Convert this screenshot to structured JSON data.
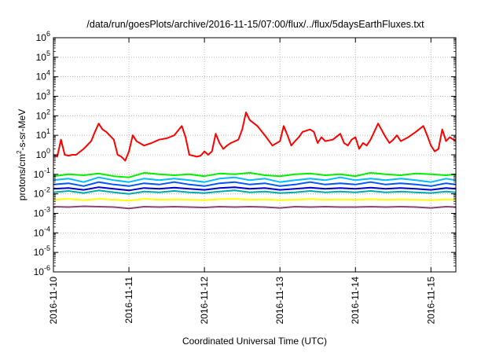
{
  "chart_data": {
    "type": "line",
    "title": "/data/run/goesPlots/archive/2016-11-15/07:00/flux/../flux/5daysEarthFluxes.txt",
    "xlabel": "Coordinated Universal Time (UTC)",
    "ylabel": {
      "base": "protons/cm",
      "sup": "2",
      "rest": "-s-sr-MeV"
    },
    "y_scale": "log",
    "ylim_exp": [
      -6,
      6
    ],
    "y_ticks": [
      {
        "base": "10",
        "exp": "6",
        "value": 6
      },
      {
        "base": "10",
        "exp": "5",
        "value": 5
      },
      {
        "base": "10",
        "exp": "4",
        "value": 4
      },
      {
        "base": "10",
        "exp": "3",
        "value": 3
      },
      {
        "base": "10",
        "exp": "2",
        "value": 2
      },
      {
        "base": "10",
        "exp": "1",
        "value": 1
      },
      {
        "base": "10",
        "exp": "0",
        "value": 0
      },
      {
        "base": "10",
        "exp": "-1",
        "value": -1
      },
      {
        "base": "10",
        "exp": "-2",
        "value": -2
      },
      {
        "base": "10",
        "exp": "-3",
        "value": -3
      },
      {
        "base": "10",
        "exp": "-4",
        "value": -4
      },
      {
        "base": "10",
        "exp": "-5",
        "value": -5
      },
      {
        "base": "10",
        "exp": "-6",
        "value": -6
      }
    ],
    "xlim_days": [
      0,
      5.33
    ],
    "x_ticks": [
      {
        "label": "2016-11-10",
        "day": 0
      },
      {
        "label": "2016-11-11",
        "day": 1
      },
      {
        "label": "2016-11-12",
        "day": 2
      },
      {
        "label": "2016-11-13",
        "day": 3
      },
      {
        "label": "2016-11-14",
        "day": 4
      },
      {
        "label": "2016-11-15",
        "day": 5
      }
    ],
    "grid": true,
    "legend": "none",
    "series": [
      {
        "color": "#ff0000",
        "x": [
          0,
          0.05,
          0.1,
          0.15,
          0.2,
          0.25,
          0.3,
          0.4,
          0.5,
          0.55,
          0.6,
          0.65,
          0.7,
          0.8,
          0.85,
          0.9,
          0.95,
          1,
          1.05,
          1.1,
          1.2,
          1.3,
          1.4,
          1.5,
          1.6,
          1.7,
          1.75,
          1.8,
          1.85,
          1.9,
          1.95,
          2,
          2.05,
          2.1,
          2.15,
          2.2,
          2.25,
          2.3,
          2.35,
          2.45,
          2.5,
          2.55,
          2.6,
          2.7,
          2.8,
          2.9,
          3,
          3.05,
          3.1,
          3.15,
          3.2,
          3.25,
          3.3,
          3.4,
          3.45,
          3.5,
          3.55,
          3.6,
          3.7,
          3.8,
          3.85,
          3.9,
          3.95,
          4,
          4.05,
          4.1,
          4.15,
          4.2,
          4.3,
          4.4,
          4.45,
          4.5,
          4.55,
          4.6,
          4.7,
          4.8,
          4.9,
          4.95,
          5,
          5.05,
          5.1,
          5.15,
          5.2,
          5.25,
          5.33
        ],
        "y": [
          1,
          0.8,
          6,
          1,
          0.9,
          1,
          1,
          2,
          5,
          15,
          40,
          20,
          15,
          6,
          1,
          0.8,
          0.5,
          1.5,
          10,
          5,
          3,
          4,
          6,
          7,
          10,
          30,
          8,
          1,
          0.9,
          0.8,
          0.9,
          1.5,
          1,
          1.5,
          12,
          4,
          2,
          3,
          4,
          6,
          20,
          150,
          60,
          30,
          10,
          3,
          5,
          30,
          10,
          3,
          5,
          8,
          15,
          20,
          15,
          4,
          8,
          5,
          6,
          12,
          4,
          3,
          6,
          8,
          2,
          4,
          3,
          6,
          40,
          8,
          4,
          6,
          10,
          5,
          8,
          15,
          30,
          10,
          3,
          1.5,
          2,
          20,
          5,
          8,
          5
        ]
      },
      {
        "color": "#00ee00",
        "x": [
          0,
          0.2,
          0.4,
          0.6,
          0.8,
          1,
          1.2,
          1.4,
          1.6,
          1.8,
          2,
          2.2,
          2.4,
          2.6,
          2.8,
          3,
          3.2,
          3.4,
          3.6,
          3.8,
          4,
          4.2,
          4.4,
          4.6,
          4.8,
          5,
          5.2,
          5.33
        ],
        "y": [
          0.08,
          0.1,
          0.09,
          0.11,
          0.08,
          0.07,
          0.12,
          0.1,
          0.09,
          0.1,
          0.08,
          0.11,
          0.1,
          0.12,
          0.09,
          0.08,
          0.1,
          0.11,
          0.09,
          0.1,
          0.08,
          0.12,
          0.1,
          0.09,
          0.11,
          0.1,
          0.09,
          0.1
        ]
      },
      {
        "color": "#00bbff",
        "x": [
          0,
          0.2,
          0.4,
          0.6,
          0.8,
          1,
          1.2,
          1.4,
          1.6,
          1.8,
          2,
          2.2,
          2.4,
          2.6,
          2.8,
          3,
          3.2,
          3.4,
          3.6,
          3.8,
          4,
          4.2,
          4.4,
          4.6,
          4.8,
          5,
          5.2,
          5.33
        ],
        "y": [
          0.05,
          0.06,
          0.04,
          0.07,
          0.05,
          0.04,
          0.06,
          0.05,
          0.06,
          0.05,
          0.04,
          0.06,
          0.07,
          0.05,
          0.06,
          0.04,
          0.05,
          0.06,
          0.05,
          0.07,
          0.05,
          0.06,
          0.05,
          0.06,
          0.05,
          0.04,
          0.06,
          0.05
        ]
      },
      {
        "color": "#0055ff",
        "x": [
          0,
          0.2,
          0.4,
          0.6,
          0.8,
          1,
          1.2,
          1.4,
          1.6,
          1.8,
          2,
          2.2,
          2.4,
          2.6,
          2.8,
          3,
          3.2,
          3.4,
          3.6,
          3.8,
          4,
          4.2,
          4.4,
          4.6,
          4.8,
          5,
          5.2,
          5.33
        ],
        "y": [
          0.03,
          0.035,
          0.025,
          0.04,
          0.03,
          0.025,
          0.035,
          0.03,
          0.04,
          0.03,
          0.025,
          0.035,
          0.04,
          0.03,
          0.035,
          0.025,
          0.03,
          0.04,
          0.03,
          0.035,
          0.03,
          0.04,
          0.03,
          0.035,
          0.03,
          0.025,
          0.035,
          0.03
        ]
      },
      {
        "color": "#00aaaa",
        "x": [
          0,
          0.2,
          0.4,
          0.6,
          0.8,
          1,
          1.2,
          1.4,
          1.6,
          1.8,
          2,
          2.2,
          2.4,
          2.6,
          2.8,
          3,
          3.2,
          3.4,
          3.6,
          3.8,
          4,
          4.2,
          4.4,
          4.6,
          4.8,
          5,
          5.2,
          5.33
        ],
        "y": [
          0.012,
          0.014,
          0.011,
          0.015,
          0.012,
          0.01,
          0.013,
          0.012,
          0.014,
          0.012,
          0.011,
          0.013,
          0.015,
          0.012,
          0.013,
          0.011,
          0.012,
          0.014,
          0.012,
          0.013,
          0.012,
          0.014,
          0.012,
          0.013,
          0.012,
          0.011,
          0.013,
          0.012
        ]
      },
      {
        "color": "#0000cc",
        "x": [
          0,
          0.2,
          0.4,
          0.6,
          0.8,
          1,
          1.2,
          1.4,
          1.6,
          1.8,
          2,
          2.2,
          2.4,
          2.6,
          2.8,
          3,
          3.2,
          3.4,
          3.6,
          3.8,
          4,
          4.2,
          4.4,
          4.6,
          4.8,
          5,
          5.2,
          5.33
        ],
        "y": [
          0.018,
          0.02,
          0.016,
          0.022,
          0.018,
          0.015,
          0.02,
          0.018,
          0.021,
          0.018,
          0.016,
          0.02,
          0.022,
          0.018,
          0.02,
          0.016,
          0.018,
          0.021,
          0.018,
          0.02,
          0.018,
          0.021,
          0.018,
          0.02,
          0.018,
          0.016,
          0.02,
          0.018
        ]
      },
      {
        "color": "#ffff00",
        "x": [
          0,
          0.2,
          0.4,
          0.6,
          0.8,
          1,
          1.2,
          1.4,
          1.6,
          1.8,
          2,
          2.2,
          2.4,
          2.6,
          2.8,
          3,
          3.2,
          3.4,
          3.6,
          3.8,
          4,
          4.2,
          4.4,
          4.6,
          4.8,
          5,
          5.2,
          5.33
        ],
        "y": [
          0.005,
          0.0055,
          0.0048,
          0.0055,
          0.005,
          0.0045,
          0.0055,
          0.005,
          0.0052,
          0.005,
          0.0048,
          0.0053,
          0.0055,
          0.005,
          0.0052,
          0.0048,
          0.005,
          0.0054,
          0.005,
          0.0052,
          0.005,
          0.0053,
          0.005,
          0.0052,
          0.005,
          0.0048,
          0.0052,
          0.005
        ]
      },
      {
        "color": "#884477",
        "x": [
          0,
          0.2,
          0.4,
          0.6,
          0.8,
          1,
          1.2,
          1.4,
          1.6,
          1.8,
          2,
          2.2,
          2.4,
          2.6,
          2.8,
          3,
          3.2,
          3.4,
          3.6,
          3.8,
          4,
          4.2,
          4.4,
          4.6,
          4.8,
          5,
          5.2,
          5.33
        ],
        "y": [
          0.0022,
          0.0021,
          0.0023,
          0.0022,
          0.0021,
          0.0018,
          0.0022,
          0.0021,
          0.0022,
          0.0021,
          0.002,
          0.0022,
          0.0021,
          0.0022,
          0.0021,
          0.0019,
          0.0022,
          0.0021,
          0.0022,
          0.0021,
          0.0021,
          0.0022,
          0.0021,
          0.0022,
          0.0021,
          0.0019,
          0.0022,
          0.0021
        ]
      }
    ]
  }
}
